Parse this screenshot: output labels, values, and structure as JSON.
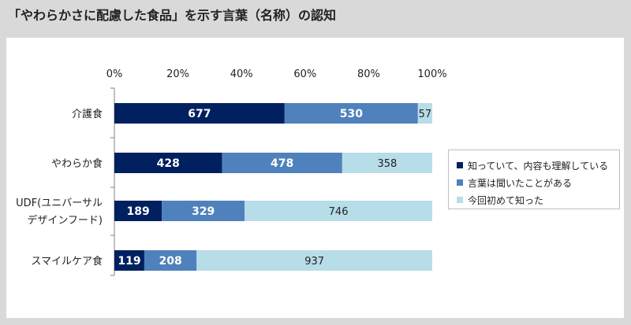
{
  "title": "「やわらかさに配慮した食品」を示す言葉（名称）の認知",
  "chart_data": {
    "type": "bar",
    "orientation": "horizontal",
    "stacked": "percent",
    "xlim": [
      0,
      100
    ],
    "x_ticks": [
      "0%",
      "20%",
      "40%",
      "60%",
      "80%",
      "100%"
    ],
    "categories": [
      [
        "介護食"
      ],
      [
        "やわらか食"
      ],
      [
        "UDF(ユニバーサル",
        "デザインフード)"
      ],
      [
        "スマイルケア食"
      ]
    ],
    "series": [
      {
        "name": "知っていて、内容も理解している",
        "color": "#002060",
        "label_color": "#ffffff",
        "values": [
          677,
          428,
          189,
          119
        ]
      },
      {
        "name": "言葉は聞いたことがある",
        "color": "#4f81bd",
        "label_color": "#ffffff",
        "values": [
          530,
          478,
          329,
          208
        ]
      },
      {
        "name": "今回初めて知った",
        "color": "#b7dde8",
        "label_color": "#222222",
        "values": [
          57,
          358,
          746,
          937
        ]
      }
    ],
    "legend_position": "right",
    "grid": false
  }
}
